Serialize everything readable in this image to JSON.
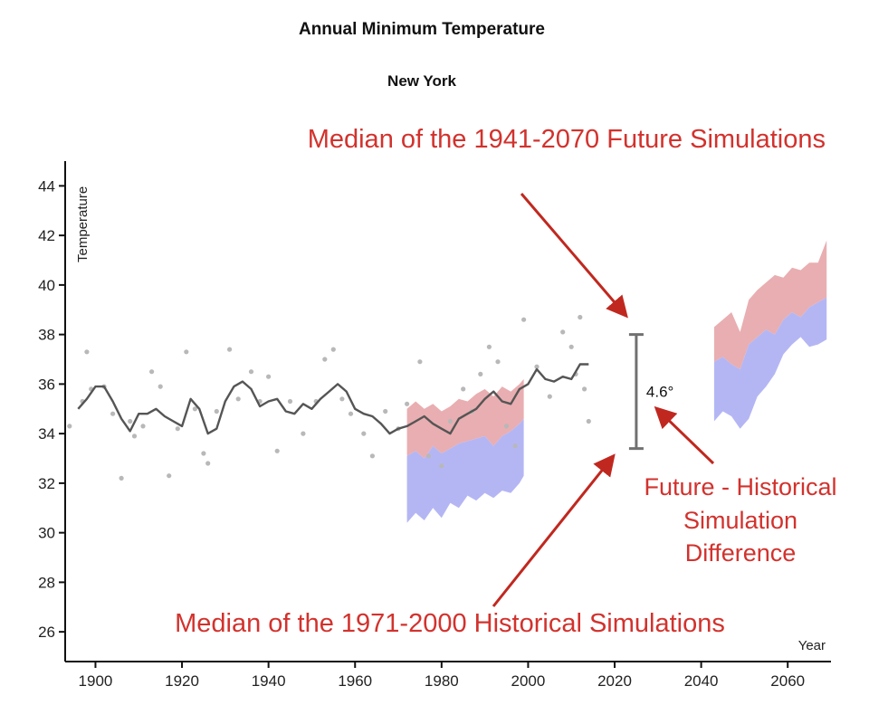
{
  "chart_data": {
    "type": "line",
    "title": "Annual Minimum Temperature",
    "subtitle": "New York",
    "xlabel": "Year",
    "ylabel": "Temperature",
    "xlim": [
      1893,
      2070
    ],
    "ylim": [
      24.8,
      45
    ],
    "x_ticks": [
      1900,
      1920,
      1940,
      1960,
      1980,
      2000,
      2020,
      2040,
      2060
    ],
    "y_ticks": [
      26,
      28,
      30,
      32,
      34,
      36,
      38,
      40,
      42,
      44
    ],
    "grid": false,
    "observed_smoothed": {
      "x": [
        1896,
        1898,
        1900,
        1902,
        1904,
        1906,
        1908,
        1910,
        1912,
        1914,
        1916,
        1918,
        1920,
        1922,
        1924,
        1926,
        1928,
        1930,
        1932,
        1934,
        1936,
        1938,
        1940,
        1942,
        1944,
        1946,
        1948,
        1950,
        1952,
        1954,
        1956,
        1958,
        1960,
        1962,
        1964,
        1966,
        1968,
        1970,
        1972,
        1974,
        1976,
        1978,
        1980,
        1982,
        1984,
        1986,
        1988,
        1990,
        1992,
        1994,
        1996,
        1998,
        2000,
        2002,
        2004,
        2006,
        2008,
        2010,
        2012,
        2014
      ],
      "y": [
        35.0,
        35.4,
        35.9,
        35.9,
        35.3,
        34.6,
        34.1,
        34.8,
        34.8,
        35.0,
        34.7,
        34.5,
        34.3,
        35.4,
        35.0,
        34.0,
        34.2,
        35.3,
        35.9,
        36.1,
        35.8,
        35.1,
        35.3,
        35.4,
        34.9,
        34.8,
        35.2,
        35.0,
        35.4,
        35.7,
        36.0,
        35.7,
        35.0,
        34.8,
        34.7,
        34.4,
        34.0,
        34.2,
        34.3,
        34.5,
        34.7,
        34.4,
        34.2,
        34.0,
        34.6,
        34.8,
        35.0,
        35.4,
        35.7,
        35.3,
        35.2,
        35.8,
        36.0,
        36.6,
        36.2,
        36.1,
        36.3,
        36.2,
        36.8,
        36.8
      ]
    },
    "observed_points": {
      "x": [
        1894,
        1897,
        1898,
        1899,
        1902,
        1904,
        1906,
        1908,
        1909,
        1911,
        1913,
        1915,
        1917,
        1919,
        1921,
        1923,
        1925,
        1926,
        1928,
        1931,
        1933,
        1936,
        1938,
        1940,
        1942,
        1945,
        1948,
        1951,
        1953,
        1955,
        1957,
        1959,
        1962,
        1964,
        1967,
        1970,
        1972,
        1975,
        1977,
        1980,
        1982,
        1985,
        1987,
        1989,
        1991,
        1993,
        1995,
        1997,
        1999,
        2002,
        2005,
        2008,
        2010,
        2011,
        2012,
        2013,
        2014
      ],
      "y": [
        34.3,
        35.3,
        37.3,
        35.8,
        35.9,
        34.8,
        32.2,
        34.5,
        33.9,
        34.3,
        36.5,
        35.9,
        32.3,
        34.2,
        37.3,
        35.0,
        33.2,
        32.8,
        34.9,
        37.4,
        35.4,
        36.5,
        35.3,
        36.3,
        33.3,
        35.3,
        34.0,
        35.3,
        37.0,
        37.4,
        35.4,
        34.8,
        34.0,
        33.1,
        34.9,
        34.2,
        35.2,
        36.9,
        33.1,
        32.7,
        34.5,
        35.8,
        34.9,
        36.4,
        37.5,
        36.9,
        34.3,
        33.5,
        38.6,
        36.7,
        35.5,
        38.1,
        37.5,
        36.4,
        38.7,
        35.8,
        34.5
      ]
    },
    "historical_simulation": {
      "name": "1971-2000 Historical Simulations",
      "x": [
        1972,
        1974,
        1976,
        1978,
        1980,
        1982,
        1984,
        1986,
        1988,
        1990,
        1992,
        1994,
        1996,
        1998,
        1999
      ],
      "upper": [
        35.0,
        35.3,
        35.0,
        35.2,
        34.9,
        35.1,
        35.4,
        35.3,
        35.6,
        35.8,
        35.5,
        35.9,
        35.7,
        36.0,
        36.2
      ],
      "middle": [
        33.1,
        33.3,
        33.0,
        33.5,
        33.2,
        33.4,
        33.6,
        33.7,
        33.8,
        33.9,
        33.5,
        33.9,
        34.1,
        34.4,
        34.6
      ],
      "lower": [
        30.4,
        30.8,
        30.5,
        31.0,
        30.6,
        31.2,
        31.0,
        31.5,
        31.3,
        31.6,
        31.4,
        31.7,
        31.6,
        32.0,
        32.3
      ]
    },
    "future_simulation": {
      "name": "1941-2070 Future Simulations",
      "x": [
        2043,
        2045,
        2047,
        2049,
        2051,
        2053,
        2055,
        2057,
        2059,
        2061,
        2063,
        2065,
        2067,
        2069
      ],
      "upper": [
        38.3,
        38.6,
        38.9,
        38.1,
        39.4,
        39.8,
        40.1,
        40.4,
        40.3,
        40.7,
        40.6,
        40.9,
        40.9,
        41.8
      ],
      "middle": [
        36.9,
        37.1,
        36.8,
        36.6,
        37.6,
        37.9,
        38.2,
        38.0,
        38.6,
        38.9,
        38.7,
        39.1,
        39.3,
        39.5
      ],
      "lower": [
        34.5,
        34.9,
        34.7,
        34.2,
        34.6,
        35.5,
        35.9,
        36.4,
        37.2,
        37.6,
        37.9,
        37.5,
        37.6,
        37.8
      ]
    },
    "difference": {
      "year": 2025,
      "low": 33.4,
      "high": 38.0,
      "label": "4.6°"
    },
    "colors": {
      "observed_line": "#555555",
      "observed_points": "#b8b8b8",
      "upper_band": "#e9aeb1",
      "lower_band": "#b4b6f4",
      "difference_bar": "#707070",
      "annotation": "#d2322d"
    },
    "annotations": [
      {
        "text": "Median of the 1941-2070 Future Simulations"
      },
      {
        "text": "Median of the 1971-2000 Historical Simulations"
      },
      {
        "lines": [
          "Future - Historical",
          "Simulation",
          "Difference"
        ]
      }
    ]
  }
}
